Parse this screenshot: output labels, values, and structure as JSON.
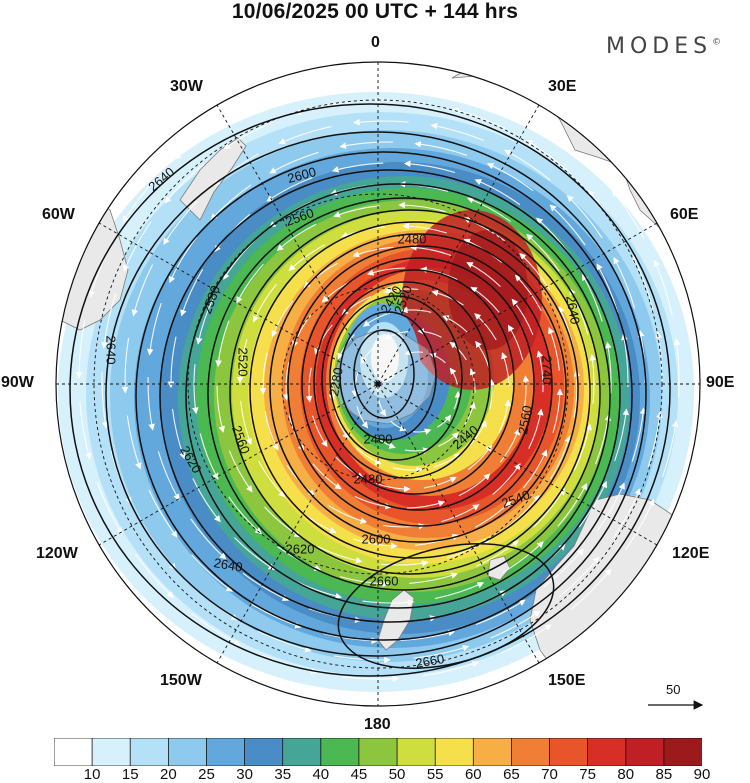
{
  "title": "10/06/2025  00 UTC  + 144 hrs",
  "brand": "MODES",
  "brand_mark": "©",
  "projection": "south polar stereographic",
  "longitude_labels": [
    {
      "id": "0",
      "text": "0"
    },
    {
      "id": "30e",
      "text": "30E"
    },
    {
      "id": "60e",
      "text": "60E"
    },
    {
      "id": "90e",
      "text": "90E"
    },
    {
      "id": "120e",
      "text": "120E"
    },
    {
      "id": "150e",
      "text": "150E"
    },
    {
      "id": "180",
      "text": "180"
    },
    {
      "id": "150w",
      "text": "150W"
    },
    {
      "id": "120w",
      "text": "120W"
    },
    {
      "id": "90w",
      "text": "90W"
    },
    {
      "id": "60w",
      "text": "60W"
    },
    {
      "id": "30w",
      "text": "30W"
    }
  ],
  "contour_labels": [
    "2280",
    "2400",
    "2420",
    "2440",
    "2480",
    "2520",
    "2540",
    "2560",
    "2580",
    "2600",
    "2620",
    "2640",
    "2660",
    "2740"
  ],
  "wind_reference": {
    "value": "50"
  },
  "colorbar": {
    "ticks": [
      "10",
      "15",
      "20",
      "25",
      "30",
      "35",
      "40",
      "45",
      "50",
      "55",
      "60",
      "65",
      "70",
      "75",
      "80",
      "85",
      "90"
    ],
    "colors": [
      "#ffffff",
      "#d6f1fc",
      "#b4e1f7",
      "#8ecaee",
      "#63a8dc",
      "#4a8dc6",
      "#45a596",
      "#4cb851",
      "#8cc63f",
      "#cede3f",
      "#f5df4b",
      "#f6ae45",
      "#f07f35",
      "#e9552b",
      "#d72f26",
      "#c01f25",
      "#9c1a1c"
    ]
  }
}
